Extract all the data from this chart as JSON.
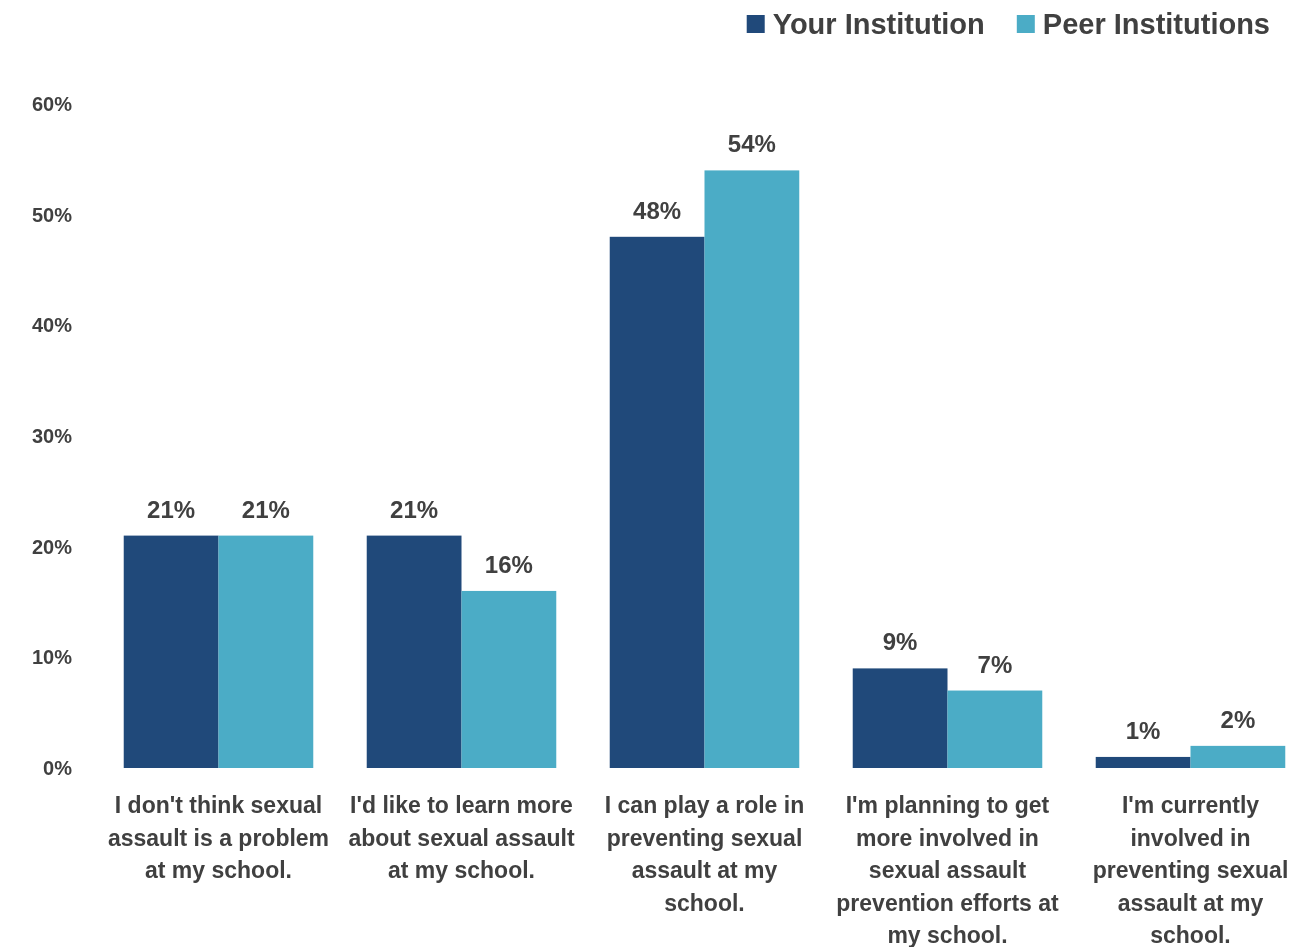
{
  "chart_data": {
    "type": "bar",
    "categories": [
      "I don't think sexual assault is a problem at my school.",
      "I'd like to learn more about sexual assault at my school.",
      "I can play a role in preventing sexual assault at my school.",
      "I'm planning to get more involved in sexual assault prevention efforts at my school.",
      "I'm currently involved in preventing sexual assault at my school."
    ],
    "series": [
      {
        "name": "Your Institution",
        "color": "#20497a",
        "values": [
          21,
          21,
          48,
          9,
          1
        ],
        "value_labels": [
          "21%",
          "21%",
          "48%",
          "9%",
          "1%"
        ]
      },
      {
        "name": "Peer Institutions",
        "color": "#4bacc6",
        "values": [
          21,
          16,
          54,
          7,
          2
        ],
        "value_labels": [
          "21%",
          "16%",
          "54%",
          "7%",
          "2%"
        ]
      }
    ],
    "ylim": [
      0,
      60
    ],
    "yticks": [
      {
        "value": 0,
        "label": "0%"
      },
      {
        "value": 10,
        "label": "10%"
      },
      {
        "value": 20,
        "label": "20%"
      },
      {
        "value": 30,
        "label": "30%"
      },
      {
        "value": 40,
        "label": "40%"
      },
      {
        "value": 50,
        "label": "50%"
      },
      {
        "value": 60,
        "label": "60%"
      }
    ],
    "grid": false,
    "legend": "top right"
  }
}
